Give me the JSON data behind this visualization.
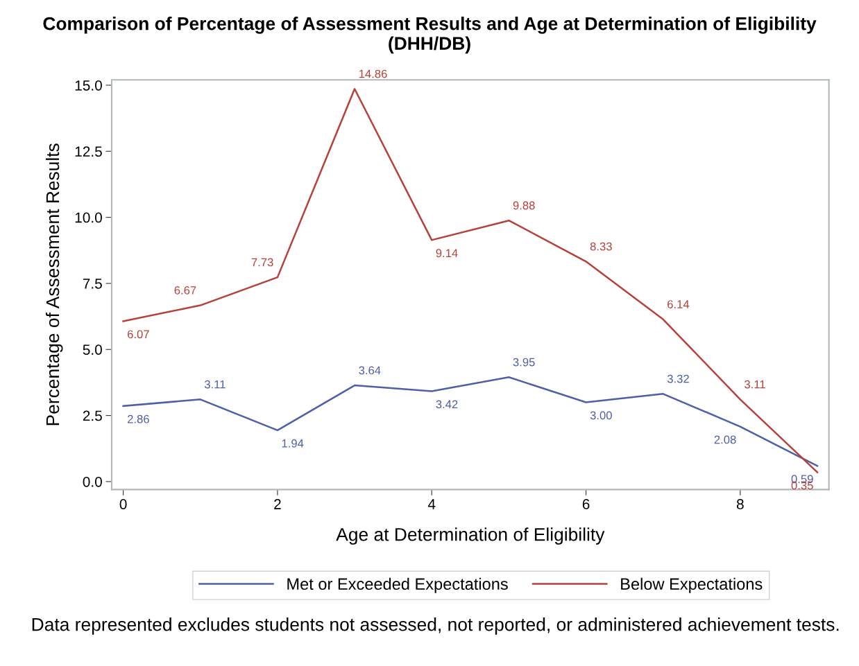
{
  "chart_data": {
    "type": "line",
    "title": "Comparison of Percentage of Assessment Results and Age at Determination of Eligibility (DHH/DB)",
    "xlabel": "Age at Determination of Eligibility",
    "ylabel": "Percentage of Assessment Results",
    "x": [
      0,
      1,
      2,
      3,
      4,
      5,
      6,
      7,
      8,
      9
    ],
    "series": [
      {
        "name": "Met or Exceeded Expectations",
        "color": "#4f5fa8",
        "values": [
          2.86,
          3.11,
          1.94,
          3.64,
          3.42,
          3.95,
          3.0,
          3.32,
          2.08,
          0.59
        ],
        "value_labels": [
          "2.86",
          "3.11",
          "1.94",
          "3.64",
          "3.42",
          "3.95",
          "3.00",
          "3.32",
          "2.08",
          "0.59"
        ]
      },
      {
        "name": "Below Expectations",
        "color": "#b5413a",
        "values": [
          6.07,
          6.67,
          7.73,
          14.86,
          9.14,
          9.88,
          8.33,
          6.14,
          3.11,
          0.35
        ],
        "value_labels": [
          "6.07",
          "6.67",
          "7.73",
          "14.86",
          "9.14",
          "9.88",
          "8.33",
          "6.14",
          "3.11",
          "0.35"
        ]
      }
    ],
    "xlim": [
      -0.15,
      9.15
    ],
    "xticks": [
      0,
      2,
      4,
      6,
      8
    ],
    "ylim": [
      -0.3,
      15.2
    ],
    "yticks": [
      {
        "value": 0,
        "label": "0.0"
      },
      {
        "value": 2.5,
        "label": "2.5"
      },
      {
        "value": 5,
        "label": "5.0"
      },
      {
        "value": 7.5,
        "label": "7.5"
      },
      {
        "value": 10,
        "label": "10.0"
      },
      {
        "value": 12.5,
        "label": "12.5"
      },
      {
        "value": 15,
        "label": "15.0"
      }
    ],
    "grid": false,
    "legend": "bottom",
    "marker": "none",
    "line_style": "solid",
    "annotations": [
      "Data represented excludes students not assessed, not reported, or administered achievement tests."
    ]
  }
}
